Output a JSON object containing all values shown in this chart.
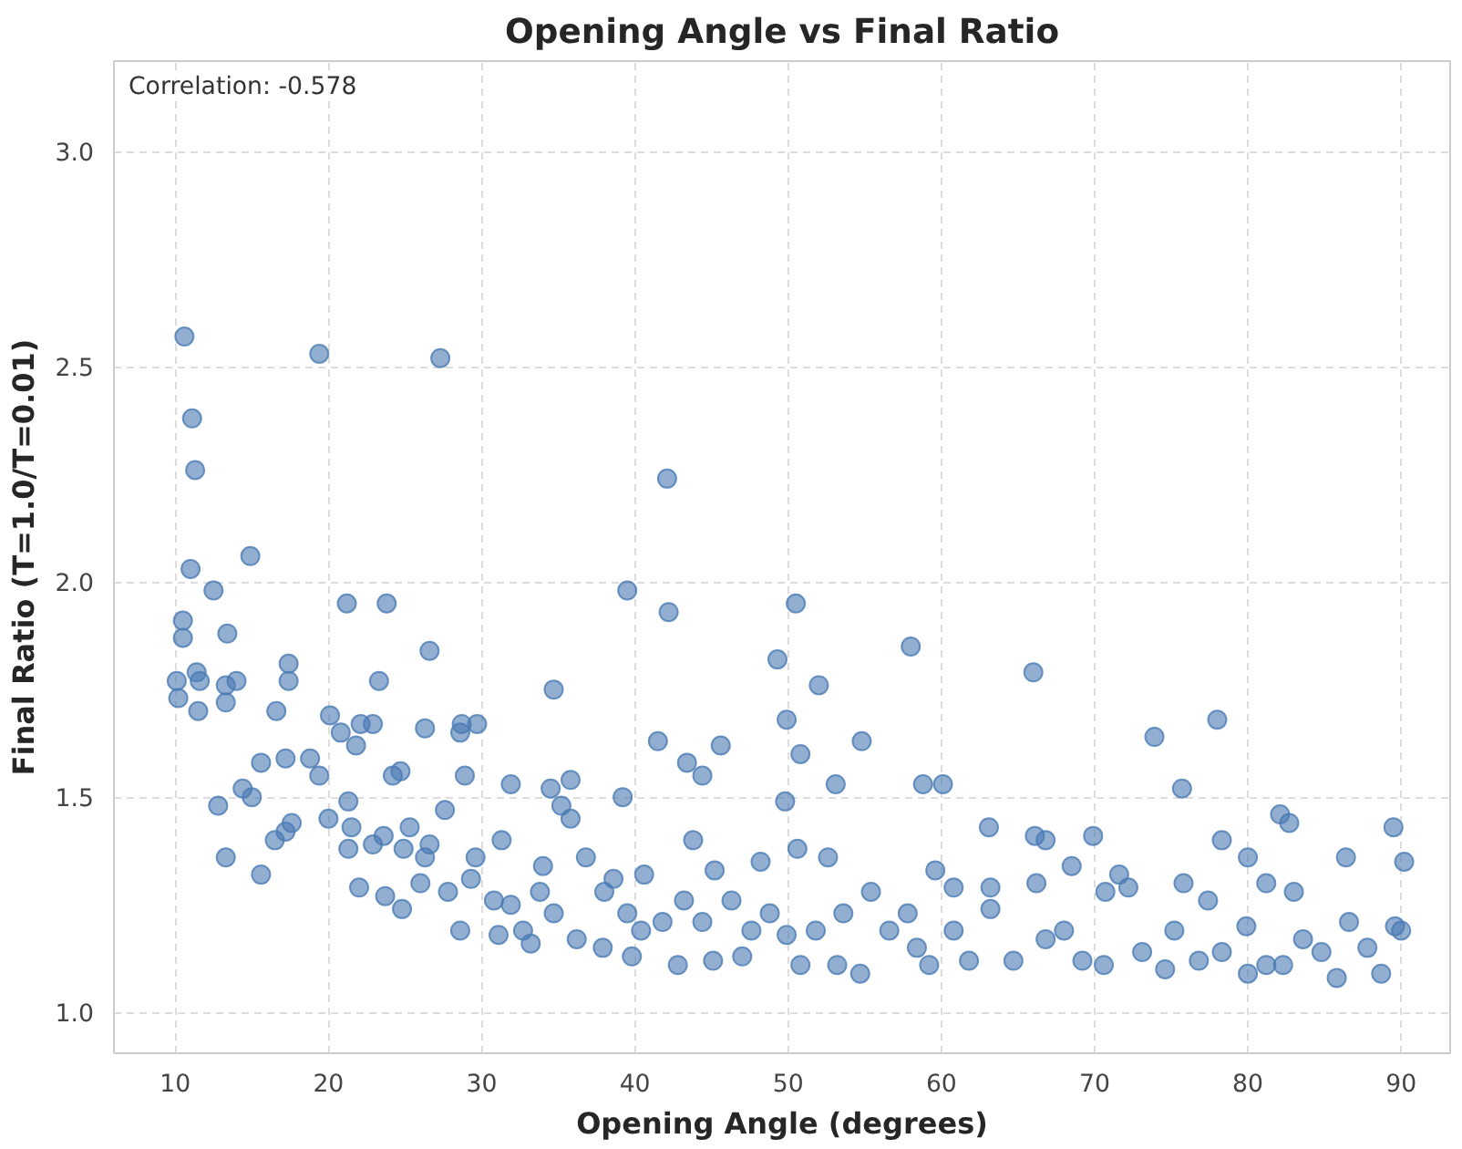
{
  "chart_data": {
    "type": "scatter",
    "title": "Opening Angle vs Final Ratio",
    "xlabel": "Opening Angle (degrees)",
    "ylabel": "Final Ratio (T=1.0/T=0.01)",
    "annotations": [
      "Correlation: -0.578"
    ],
    "xlim": [
      6.0,
      93.2
    ],
    "ylim": [
      0.905,
      3.21
    ],
    "xticks": [
      10,
      20,
      30,
      40,
      50,
      60,
      70,
      80,
      90
    ],
    "yticks": [
      {
        "value": 1,
        "label": "1.0"
      },
      1.5,
      {
        "value": 2,
        "label": "2.0"
      },
      2.5,
      {
        "value": 3,
        "label": "3.0"
      }
    ],
    "grid": true,
    "marker": "circle",
    "series": [
      {
        "color": "#4a7ab4",
        "x": [
          10.6,
          11.1,
          11.3,
          11.0,
          10.5,
          10.5,
          12.5,
          14.9,
          19.4,
          27.3,
          21.2,
          23.8,
          26.6,
          13.4,
          17.4,
          17.4,
          10.1,
          10.2,
          11.4,
          11.6,
          14.0,
          13.3,
          13.3,
          11.5,
          16.6,
          23.3,
          20.1,
          34.7,
          22.9,
          26.3,
          28.7,
          29.7,
          28.6,
          39.5,
          42.1,
          42.2,
          50.5,
          49.3,
          52.0,
          58.0,
          66.0,
          41.5,
          49.9,
          50.8,
          54.8,
          43.4,
          44.4,
          45.6,
          53.1,
          49.8,
          58.8,
          60.1,
          73.9,
          78.0,
          75.7,
          82.1,
          82.7,
          89.5,
          86.4,
          90.2,
          78.3,
          69.9,
          66.1,
          66.8,
          63.1,
          39.2,
          34.5,
          35.8,
          31.9,
          35.2,
          35.8,
          31.3,
          28.9,
          24.2,
          24.7,
          27.6,
          12.8,
          15.0,
          14.4,
          15.6,
          17.2,
          18.8,
          19.4,
          20.8,
          21.8,
          22.1,
          15.6,
          13.3,
          16.5,
          17.2,
          17.6,
          20.0,
          21.3,
          21.5,
          21.3,
          22.9,
          23.6,
          25.3,
          24.9,
          26.6,
          22.0,
          23.7,
          24.8,
          26.0,
          27.8,
          28.6,
          29.3,
          30.8,
          32.7,
          33.2,
          31.9,
          33.8,
          34.0,
          36.8,
          38.6,
          39.5,
          39.8,
          40.4,
          41.8,
          43.2,
          44.4,
          45.1,
          46.3,
          47.6,
          48.2,
          48.8,
          49.9,
          51.8,
          52.6,
          53.2,
          53.6,
          55.4,
          56.6,
          57.8,
          58.4,
          59.6,
          60.8,
          61.8,
          63.2,
          64.7,
          66.2,
          68.0,
          69.2,
          70.7,
          72.2,
          73.1,
          74.6,
          75.2,
          75.8,
          77.4,
          78.3,
          79.9,
          81.2,
          83.0,
          83.6,
          84.8,
          85.8,
          86.6,
          87.8,
          88.7,
          89.6,
          90.0,
          82.3,
          80.0,
          76.8,
          70.6,
          66.8,
          59.2,
          54.7,
          50.8,
          47.0,
          42.8,
          37.9,
          36.2,
          38.0,
          34.7,
          31.1,
          29.6,
          26.3,
          40.6,
          45.2,
          43.8,
          50.6,
          71.6,
          81.2,
          80.0,
          68.5,
          63.2,
          60.8
        ],
        "values": [
          2.57,
          2.38,
          2.26,
          2.03,
          1.91,
          1.87,
          1.98,
          2.06,
          2.53,
          2.52,
          1.95,
          1.95,
          1.84,
          1.88,
          1.81,
          1.77,
          1.77,
          1.73,
          1.79,
          1.77,
          1.77,
          1.76,
          1.72,
          1.7,
          1.7,
          1.77,
          1.69,
          1.75,
          1.67,
          1.66,
          1.67,
          1.67,
          1.65,
          1.98,
          2.24,
          1.93,
          1.95,
          1.82,
          1.76,
          1.85,
          1.79,
          1.63,
          1.68,
          1.6,
          1.63,
          1.58,
          1.55,
          1.62,
          1.53,
          1.49,
          1.53,
          1.53,
          1.64,
          1.68,
          1.52,
          1.46,
          1.44,
          1.43,
          1.36,
          1.35,
          1.4,
          1.41,
          1.41,
          1.4,
          1.43,
          1.5,
          1.52,
          1.54,
          1.53,
          1.48,
          1.45,
          1.4,
          1.55,
          1.55,
          1.56,
          1.47,
          1.48,
          1.5,
          1.52,
          1.58,
          1.59,
          1.59,
          1.55,
          1.65,
          1.62,
          1.67,
          1.32,
          1.36,
          1.4,
          1.42,
          1.44,
          1.45,
          1.49,
          1.43,
          1.38,
          1.39,
          1.41,
          1.43,
          1.38,
          1.39,
          1.29,
          1.27,
          1.24,
          1.3,
          1.28,
          1.19,
          1.31,
          1.26,
          1.19,
          1.16,
          1.25,
          1.28,
          1.34,
          1.36,
          1.31,
          1.23,
          1.13,
          1.19,
          1.21,
          1.26,
          1.21,
          1.12,
          1.26,
          1.19,
          1.35,
          1.23,
          1.18,
          1.19,
          1.36,
          1.11,
          1.23,
          1.28,
          1.19,
          1.23,
          1.15,
          1.33,
          1.19,
          1.12,
          1.24,
          1.12,
          1.3,
          1.19,
          1.12,
          1.28,
          1.29,
          1.14,
          1.1,
          1.19,
          1.3,
          1.26,
          1.14,
          1.2,
          1.11,
          1.28,
          1.17,
          1.14,
          1.08,
          1.21,
          1.15,
          1.09,
          1.2,
          1.19,
          1.11,
          1.09,
          1.12,
          1.11,
          1.17,
          1.11,
          1.09,
          1.11,
          1.13,
          1.11,
          1.15,
          1.17,
          1.28,
          1.23,
          1.18,
          1.36,
          1.36,
          1.32,
          1.33,
          1.4,
          1.38,
          1.32,
          1.3,
          1.36,
          1.34,
          1.29,
          1.29
        ]
      }
    ]
  }
}
